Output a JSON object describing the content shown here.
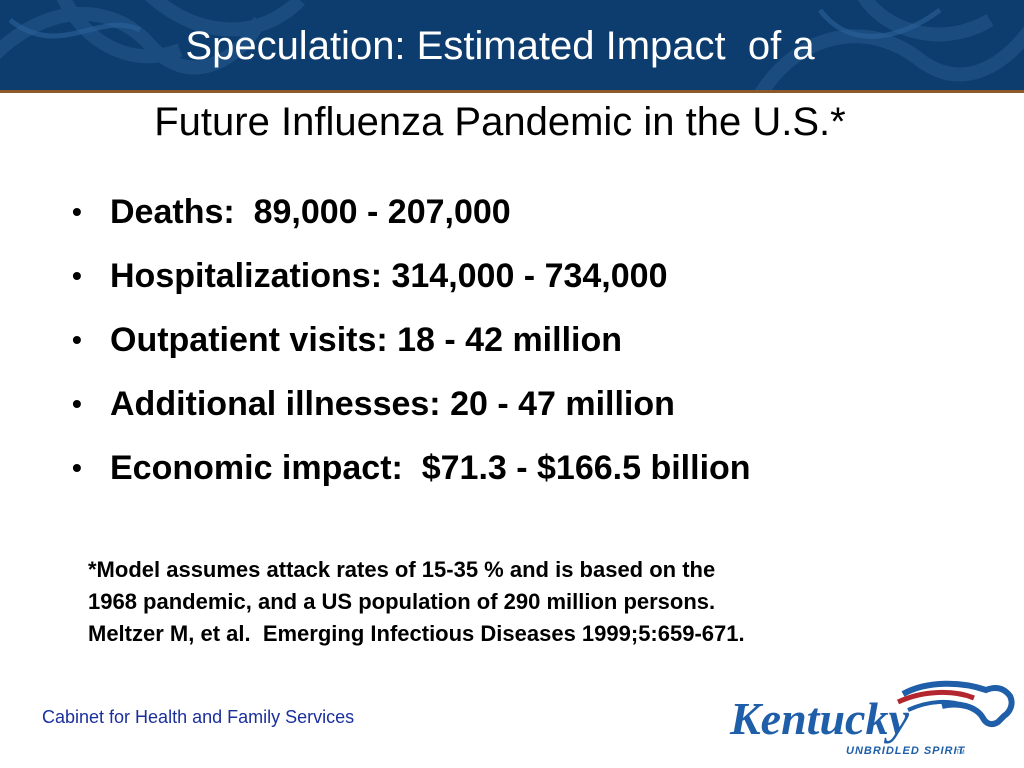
{
  "title": {
    "line1": "Speculation: Estimated Impact  of a",
    "line2": "Future Influenza Pandemic in the U.S.*"
  },
  "bullets": [
    {
      "marker": "•",
      "text": "Deaths:  89,000 - 207,000"
    },
    {
      "marker": "•",
      "text": "Hospitalizations: 314,000 - 734,000"
    },
    {
      "marker": "•",
      "text": "Outpatient visits: 18 - 42 million"
    },
    {
      "marker": "•",
      "text": "Additional illnesses: 20 - 47 million"
    },
    {
      "marker": "•",
      "text": "Economic impact:  $71.3 - $166.5 billion"
    }
  ],
  "footnote": {
    "line1": "*Model assumes attack rates of 15-35 % and is based on the",
    "line2": "1968 pandemic, and a US population of 290 million persons.",
    "line3": "Meltzer M, et al.  Emerging Infectious Diseases 1999;5:659-671."
  },
  "footer": {
    "agency": "Cabinet for Health and Family Services"
  },
  "logo": {
    "wordmark": "Kentucky",
    "tagline": "UNBRIDLED SPIRIT",
    "trademark": "TM"
  },
  "colors": {
    "header_band": "#0d3c6e",
    "header_rule": "#8a5a2b",
    "agency_text": "#1a2f9c",
    "logo_blue": "#1f5ea8",
    "logo_red": "#b3262e"
  },
  "icons": {
    "logo_mark": "horse-head-icon"
  }
}
